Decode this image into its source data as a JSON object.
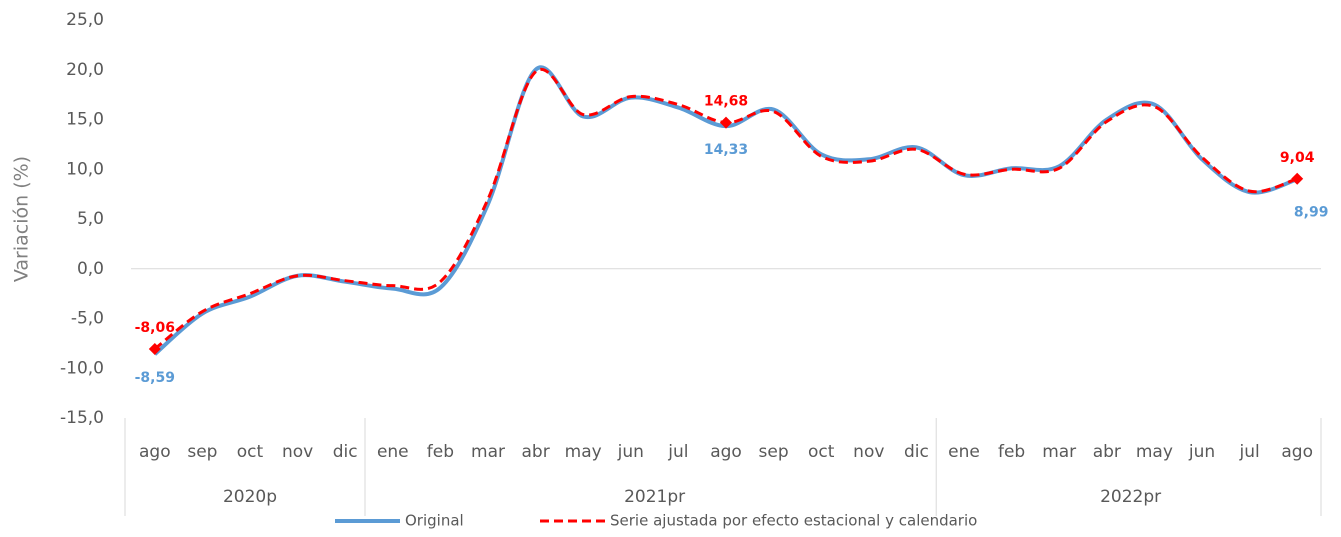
{
  "chart_data": {
    "type": "line",
    "y_label": "Variación (%)",
    "categories": [
      "ago",
      "sep",
      "oct",
      "nov",
      "dic",
      "ene",
      "feb",
      "mar",
      "abr",
      "may",
      "jun",
      "jul",
      "ago",
      "sep",
      "oct",
      "nov",
      "dic",
      "ene",
      "feb",
      "mar",
      "abr",
      "may",
      "jun",
      "jul",
      "ago"
    ],
    "groups": [
      {
        "label": "2020p",
        "span": 5
      },
      {
        "label": "2021pr",
        "span": 12
      },
      {
        "label": "2022pr",
        "span": 8
      }
    ],
    "series": [
      {
        "name": "Original",
        "color": "#5b9bd5",
        "dash": false,
        "values": [
          -8.59,
          -4.5,
          -2.8,
          -0.7,
          -1.3,
          -2.0,
          -1.9,
          6.5,
          20.0,
          15.3,
          17.2,
          16.2,
          14.33,
          16.0,
          11.5,
          11.0,
          12.2,
          9.4,
          10.1,
          10.3,
          15.0,
          16.5,
          11.0,
          7.7,
          8.99
        ],
        "value_labels": [
          "-8,59",
          null,
          null,
          null,
          null,
          null,
          null,
          null,
          null,
          null,
          null,
          null,
          "14,33",
          null,
          null,
          null,
          null,
          null,
          null,
          null,
          null,
          null,
          null,
          null,
          "8,99"
        ]
      },
      {
        "name": "Serie ajustada por efecto estacional y calendario",
        "color": "#ff0000",
        "dash": true,
        "values": [
          -8.06,
          -4.3,
          -2.5,
          -0.7,
          -1.2,
          -1.7,
          -1.3,
          7.0,
          19.8,
          15.5,
          17.3,
          16.5,
          14.68,
          15.8,
          11.3,
          10.8,
          12.0,
          9.5,
          10.0,
          10.1,
          14.8,
          16.3,
          11.2,
          7.8,
          9.04
        ],
        "value_labels": [
          "-8,06",
          null,
          null,
          null,
          null,
          null,
          null,
          null,
          null,
          null,
          null,
          null,
          "14,68",
          null,
          null,
          null,
          null,
          null,
          null,
          null,
          null,
          null,
          null,
          null,
          "9,04"
        ]
      }
    ],
    "ylim": [
      -15,
      25
    ],
    "yticks": [
      {
        "value": -15,
        "label": "-15,0"
      },
      {
        "value": -10,
        "label": "-10,0"
      },
      {
        "value": -5,
        "label": "-5,0"
      },
      {
        "value": 0,
        "label": "0,0"
      },
      {
        "value": 5,
        "label": "5,0"
      },
      {
        "value": 10,
        "label": "10,0"
      },
      {
        "value": 15,
        "label": "15,0"
      },
      {
        "value": 20,
        "label": "20,0"
      },
      {
        "value": 25,
        "label": "25,0"
      }
    ],
    "legend": "bottom"
  }
}
